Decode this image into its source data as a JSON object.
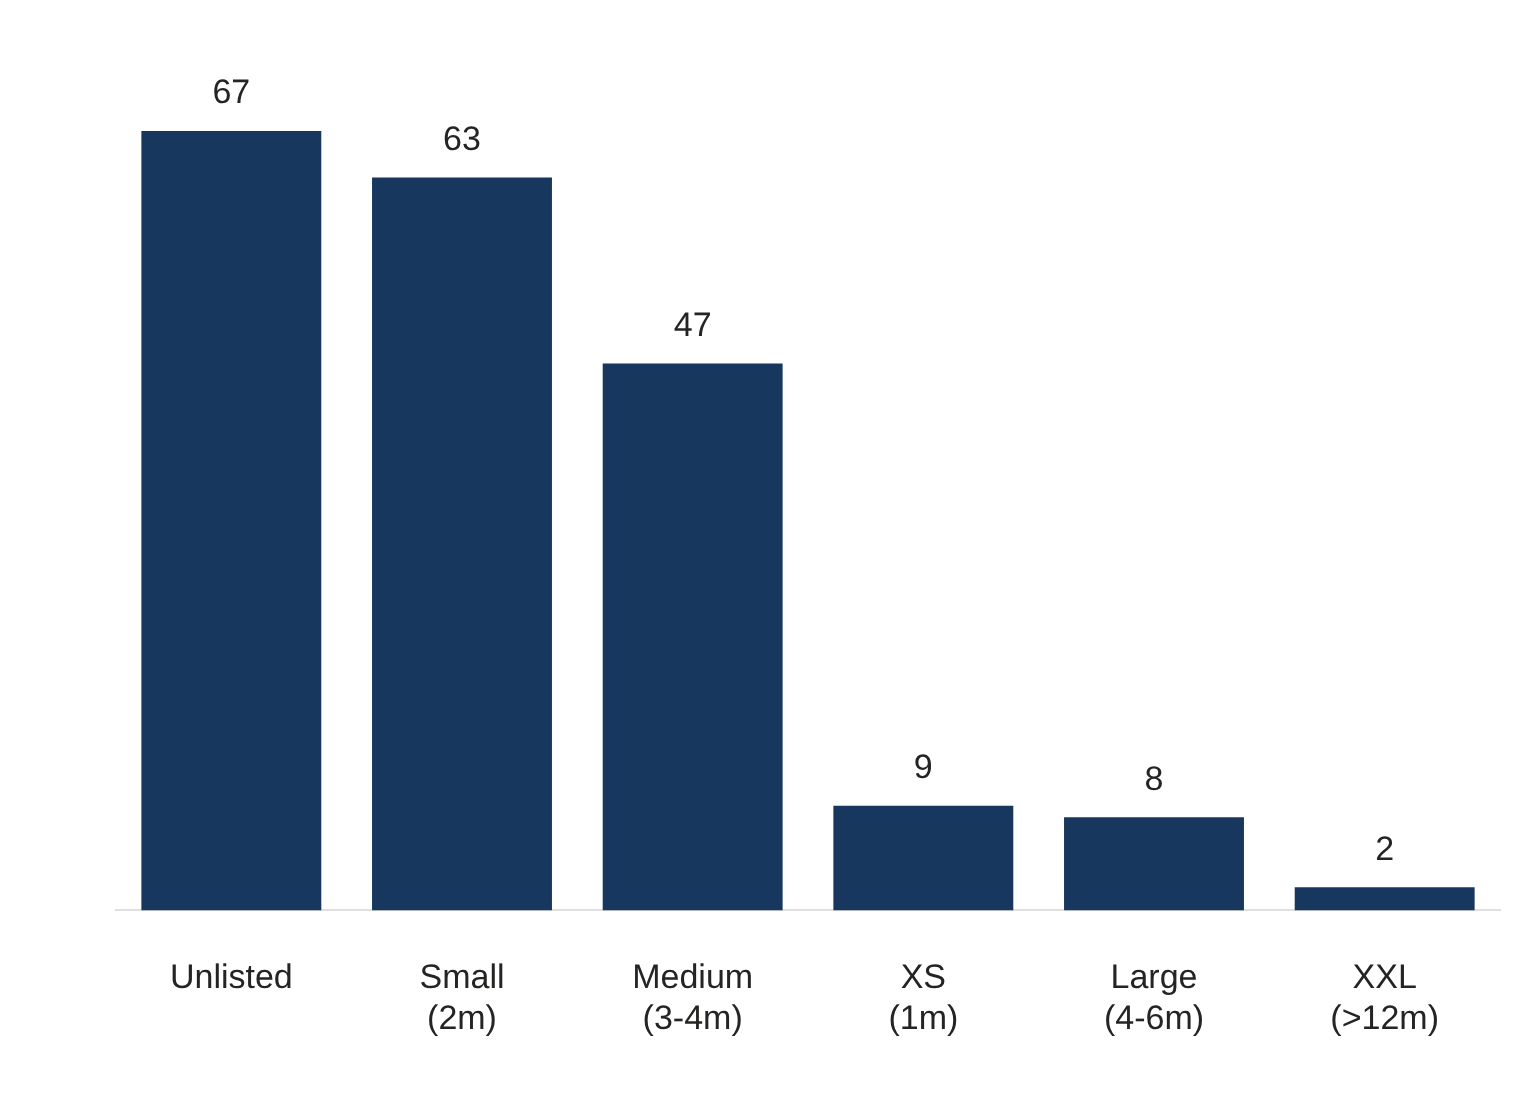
{
  "chart_data": {
    "type": "bar",
    "categories": [
      "Unlisted",
      "Small (2m)",
      "Medium (3-4m)",
      "XS (1m)",
      "Large (4-6m)",
      "XXL (>12m)"
    ],
    "values": [
      67,
      63,
      47,
      9,
      8,
      2
    ],
    "color": "#17375e",
    "data_labels": true,
    "grid": false,
    "legend": false
  }
}
